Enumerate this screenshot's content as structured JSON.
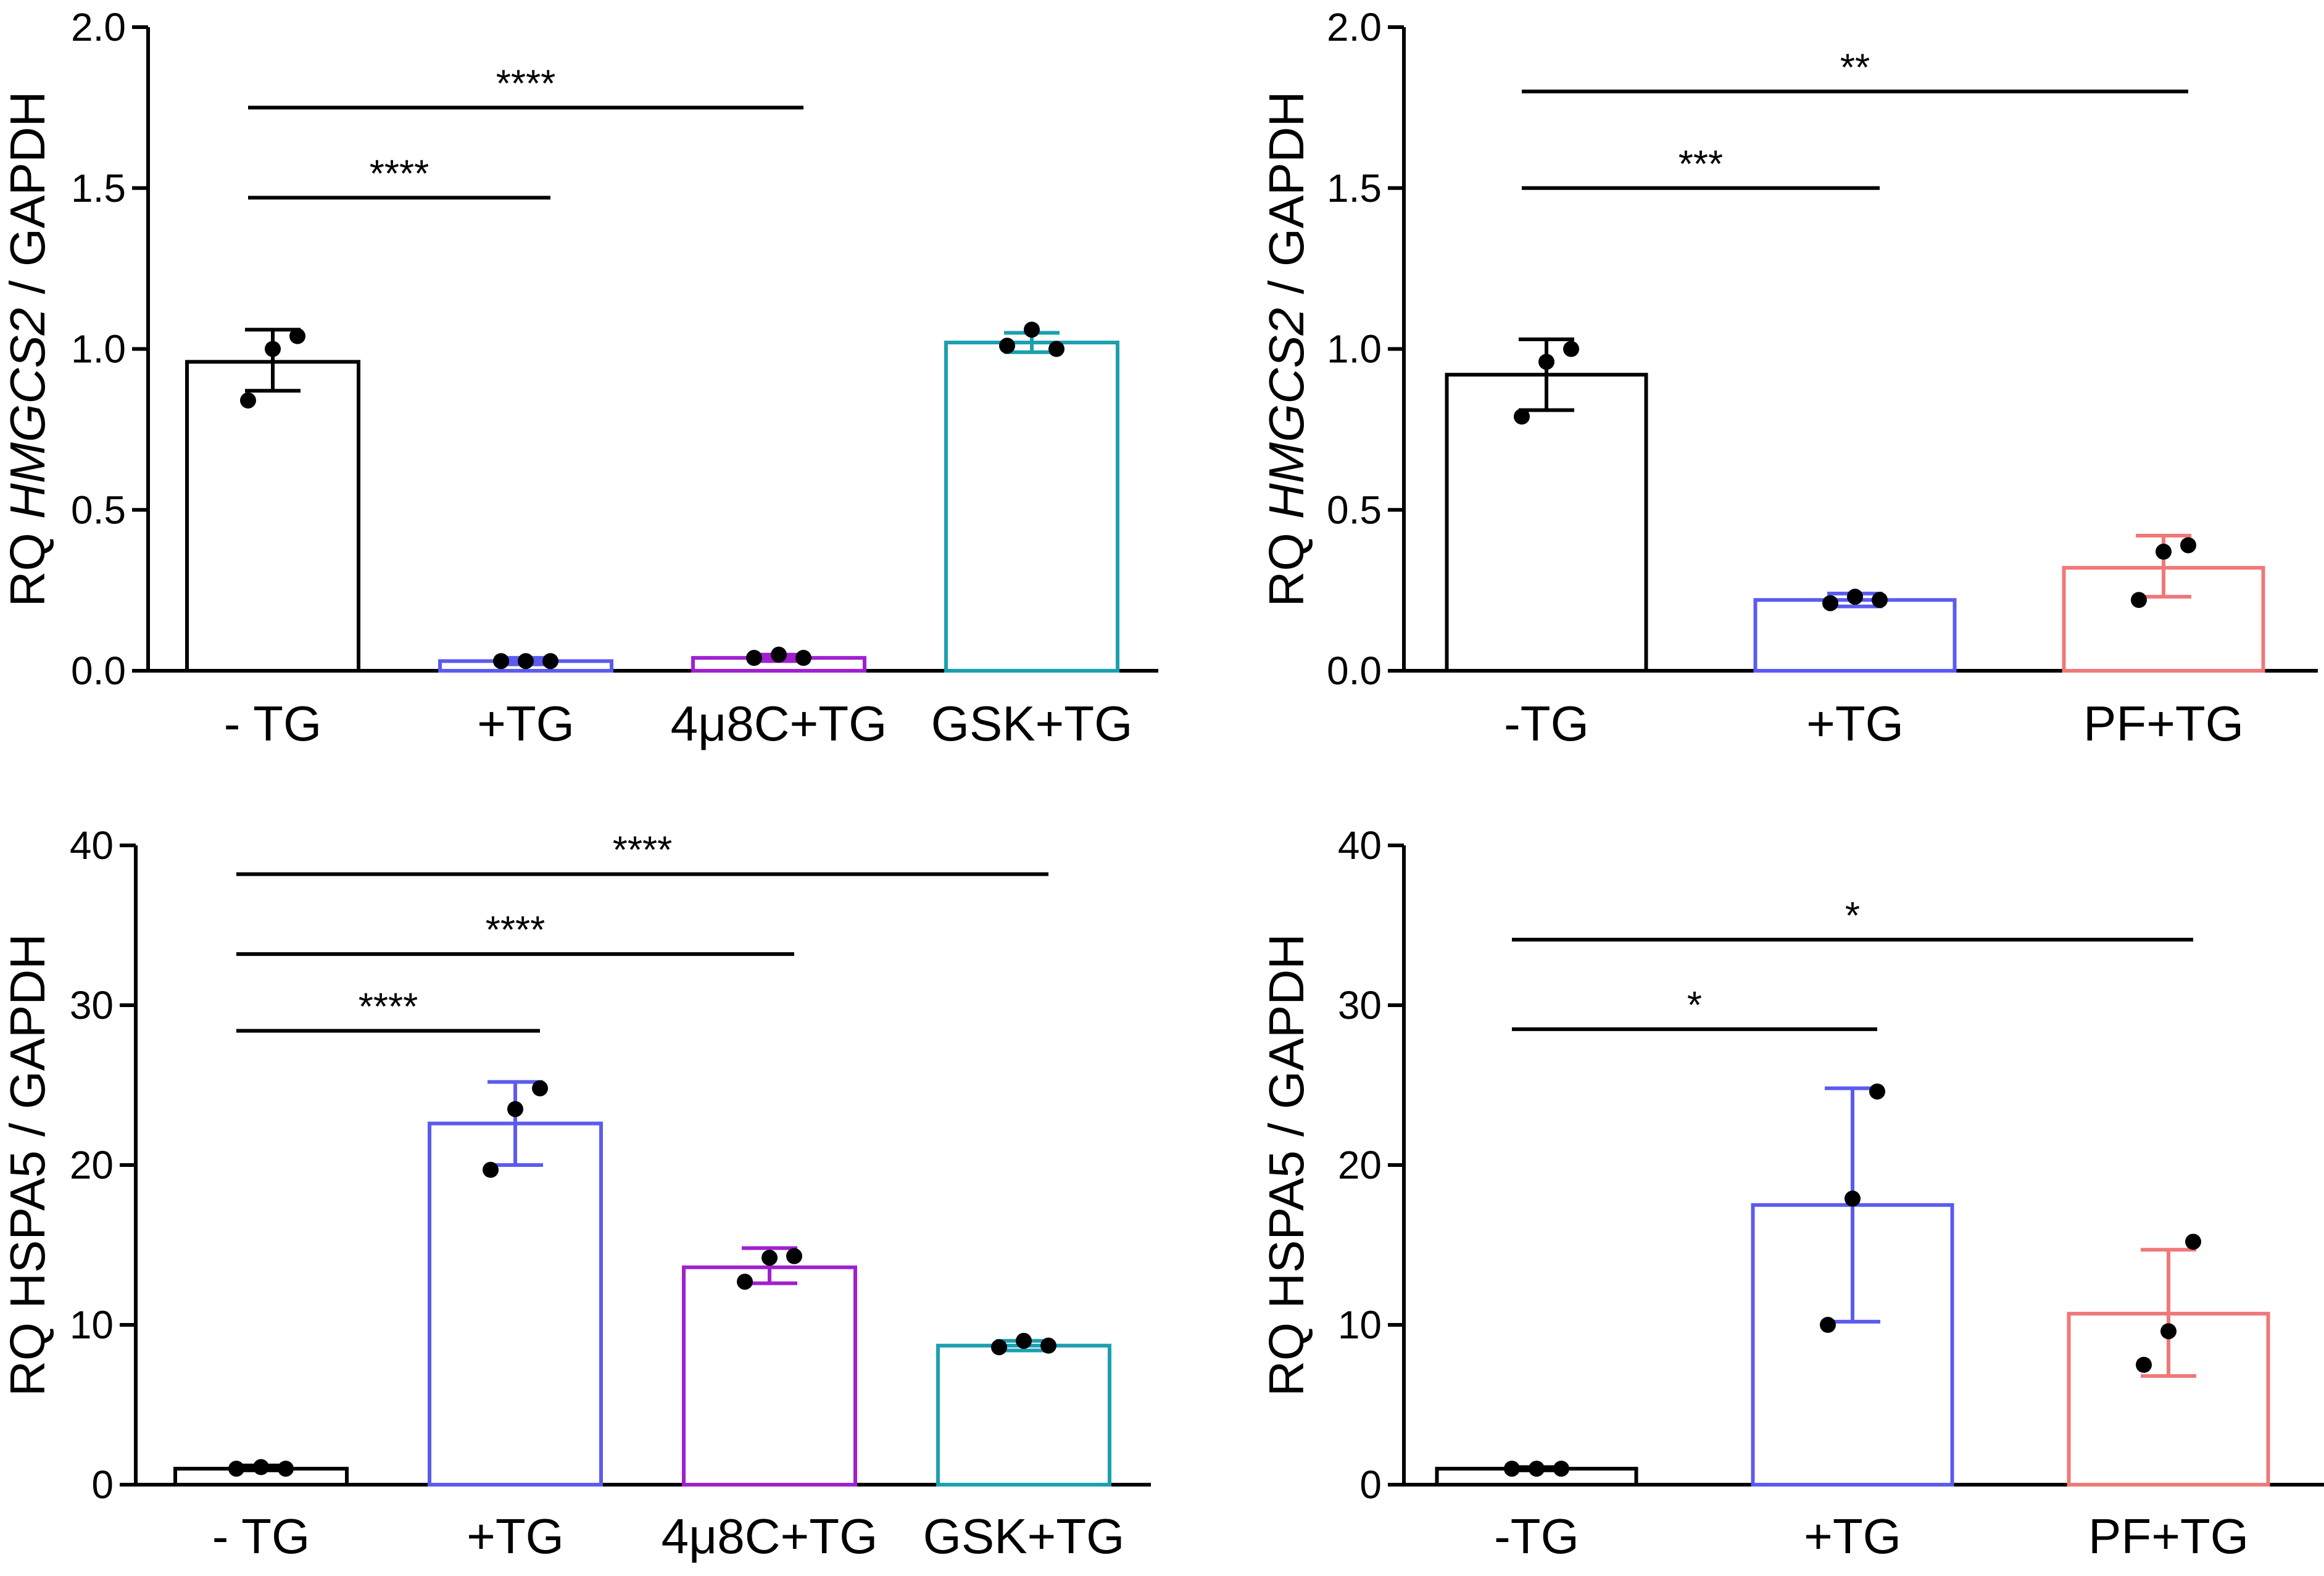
{
  "chart_data": [
    {
      "type": "bar",
      "ylabel": {
        "prefix": "RQ ",
        "gene": "HMGCS2",
        "suffix": " / GAPDH",
        "italic_gene": true
      },
      "ylim": [
        0,
        2
      ],
      "yticks": [
        "0.0",
        "0.5",
        "1.0",
        "1.5",
        "2.0"
      ],
      "ytick_values": [
        0,
        0.5,
        1.0,
        1.5,
        2.0
      ],
      "categories": [
        "- TG",
        "+TG",
        "4μ8C+TG",
        "GSK+TG"
      ],
      "colors": [
        "#000000",
        "#5b5bf0",
        "#a020d0",
        "#1aa0b0"
      ],
      "values": [
        0.96,
        0.03,
        0.04,
        1.02
      ],
      "err_low": [
        0.87,
        0.02,
        0.03,
        0.99
      ],
      "err_high": [
        1.06,
        0.04,
        0.05,
        1.05
      ],
      "points": [
        [
          0.84,
          1.0,
          1.04
        ],
        [
          0.03,
          0.03,
          0.03
        ],
        [
          0.04,
          0.05,
          0.04
        ],
        [
          1.01,
          1.06,
          1.0
        ]
      ],
      "significance": [
        {
          "from": 0,
          "to": 1,
          "label": "****",
          "y": 1.47
        },
        {
          "from": 0,
          "to": 2,
          "label": "****",
          "y": 1.75
        }
      ]
    },
    {
      "type": "bar",
      "ylabel": {
        "prefix": "RQ ",
        "gene": "HMGCS2",
        "suffix": " / GAPDH",
        "italic_gene": true
      },
      "ylim": [
        0,
        2
      ],
      "yticks": [
        "0.0",
        "0.5",
        "1.0",
        "1.5",
        "2.0"
      ],
      "ytick_values": [
        0,
        0.5,
        1.0,
        1.5,
        2.0
      ],
      "categories": [
        "-TG",
        "+TG",
        "PF+TG"
      ],
      "colors": [
        "#000000",
        "#5b5bf0",
        "#f07878"
      ],
      "values": [
        0.92,
        0.22,
        0.32
      ],
      "err_low": [
        0.81,
        0.2,
        0.23
      ],
      "err_high": [
        1.03,
        0.24,
        0.42
      ],
      "points": [
        [
          0.79,
          0.96,
          1.0
        ],
        [
          0.21,
          0.23,
          0.22
        ],
        [
          0.22,
          0.37,
          0.39
        ]
      ],
      "significance": [
        {
          "from": 0,
          "to": 1,
          "label": "***",
          "y": 1.5
        },
        {
          "from": 0,
          "to": 2,
          "label": "**",
          "y": 1.8
        }
      ]
    },
    {
      "type": "bar",
      "ylabel": {
        "prefix": "RQ ",
        "gene": "HSPA5",
        "suffix": " / GAPDH",
        "italic_gene": false
      },
      "ylim": [
        0,
        40
      ],
      "yticks": [
        "0",
        "10",
        "20",
        "30",
        "40"
      ],
      "ytick_values": [
        0,
        10,
        20,
        30,
        40
      ],
      "categories": [
        "- TG",
        "+TG",
        "4μ8C+TG",
        "GSK+TG"
      ],
      "colors": [
        "#000000",
        "#5b5bf0",
        "#a020d0",
        "#1aa0b0"
      ],
      "values": [
        1.0,
        22.6,
        13.6,
        8.7
      ],
      "err_low": [
        0.9,
        20.0,
        12.6,
        8.4
      ],
      "err_high": [
        1.2,
        25.2,
        14.8,
        9.0
      ],
      "points": [
        [
          1.0,
          1.1,
          1.0
        ],
        [
          19.7,
          23.5,
          24.8
        ],
        [
          12.7,
          14.2,
          14.3
        ],
        [
          8.6,
          9.0,
          8.7
        ]
      ],
      "significance": [
        {
          "from": 0,
          "to": 1,
          "label": "****",
          "y": 28.4
        },
        {
          "from": 0,
          "to": 2,
          "label": "****",
          "y": 33.2
        },
        {
          "from": 0,
          "to": 3,
          "label": "****",
          "y": 38.2
        }
      ]
    },
    {
      "type": "bar",
      "ylabel": {
        "prefix": "RQ ",
        "gene": "HSPA5",
        "suffix": " / GAPDH",
        "italic_gene": false
      },
      "ylim": [
        0,
        40
      ],
      "yticks": [
        "0",
        "10",
        "20",
        "30",
        "40"
      ],
      "ytick_values": [
        0,
        10,
        20,
        30,
        40
      ],
      "categories": [
        "-TG",
        "+TG",
        "PF+TG"
      ],
      "colors": [
        "#000000",
        "#5b5bf0",
        "#f07878"
      ],
      "values": [
        1.0,
        17.5,
        10.7
      ],
      "err_low": [
        0.9,
        10.2,
        6.8
      ],
      "err_high": [
        1.1,
        24.8,
        14.7
      ],
      "points": [
        [
          1.0,
          1.0,
          1.0
        ],
        [
          10.0,
          17.9,
          24.6
        ],
        [
          7.5,
          9.6,
          15.2
        ]
      ],
      "significance": [
        {
          "from": 0,
          "to": 1,
          "label": "*",
          "y": 28.5
        },
        {
          "from": 0,
          "to": 2,
          "label": "*",
          "y": 34.1
        }
      ]
    }
  ]
}
